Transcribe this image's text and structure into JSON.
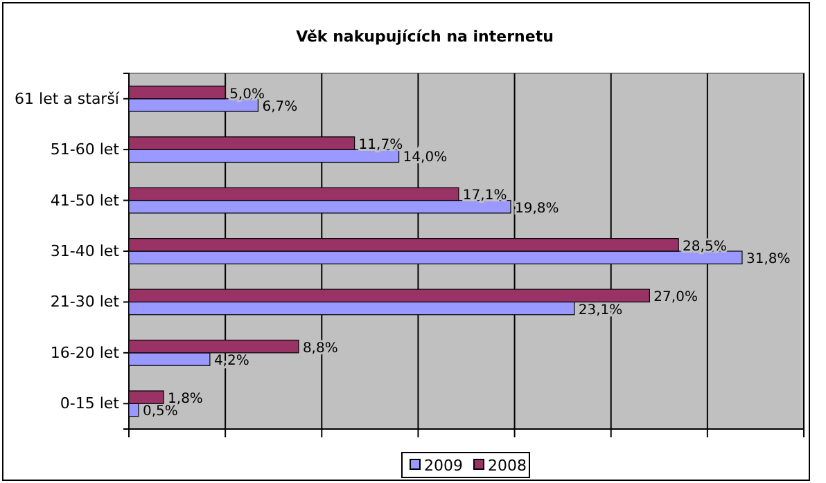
{
  "chart_data": {
    "type": "bar",
    "orientation": "horizontal",
    "title": "Věk nakupujících na internetu",
    "categories": [
      "61 let a starší",
      "51-60 let",
      "41-50 let",
      "31-40 let",
      "21-30 let",
      "16-20 let",
      "0-15 let"
    ],
    "series": [
      {
        "name": "2009",
        "color": "#9999ff",
        "values": [
          6.7,
          14.0,
          19.8,
          31.8,
          23.1,
          4.2,
          0.5
        ],
        "value_labels": [
          "6,7%",
          "14,0%",
          "19,8%",
          "31,8%",
          "23,1%",
          "4,2%",
          "0,5%"
        ]
      },
      {
        "name": "2008",
        "color": "#993366",
        "values": [
          5.0,
          11.7,
          17.1,
          28.5,
          27.0,
          8.8,
          1.8
        ],
        "value_labels": [
          "5,0%",
          "11,7%",
          "17,1%",
          "28,5%",
          "27,0%",
          "8,8%",
          "1,8%"
        ]
      }
    ],
    "xlim": [
      0,
      35
    ],
    "xticks": [
      {
        "value": 0,
        "label": null
      },
      {
        "value": 5,
        "label": null
      },
      {
        "value": 10,
        "label": null
      },
      {
        "value": 15,
        "label": null
      },
      {
        "value": 20,
        "label": null
      },
      {
        "value": 25,
        "label": null
      },
      {
        "value": 30,
        "label": null
      },
      {
        "value": 35,
        "label": null
      }
    ],
    "grid": "x",
    "legend": "bottom",
    "tick_labels": "y"
  }
}
